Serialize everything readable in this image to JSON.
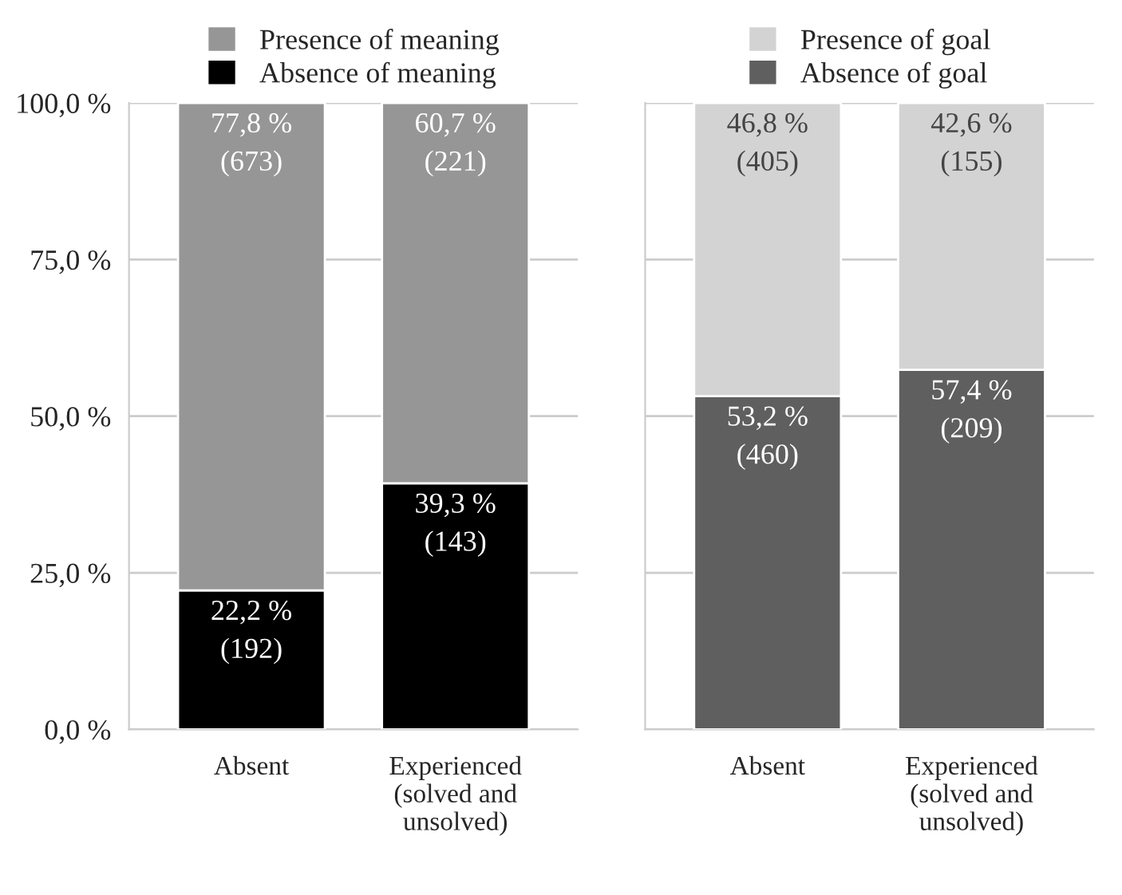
{
  "chart_data": [
    {
      "type": "bar",
      "stacked": true,
      "categories": [
        "Absent",
        "Experienced\n(solved and\nunsolved)"
      ],
      "series": [
        {
          "name": "Absence of meaning",
          "color": "#000000",
          "values": [
            22.2,
            39.3
          ],
          "value_labels": [
            "22,2 %\n(192)",
            "39,3 %\n(143)"
          ]
        },
        {
          "name": "Presence of meaning",
          "color": "#969696",
          "values": [
            77.8,
            60.7
          ],
          "value_labels": [
            "77,8 %\n(673)",
            "60,7 %\n(221)"
          ]
        }
      ],
      "ylim": [
        0,
        100
      ],
      "yticks": [
        {
          "value": 0,
          "label": "0,0 %"
        },
        {
          "value": 25,
          "label": "25,0 %"
        },
        {
          "value": 50,
          "label": "50,0 %"
        },
        {
          "value": 75,
          "label": "75,0 %"
        },
        {
          "value": 100,
          "label": "100,0 %"
        }
      ],
      "grid": "y",
      "legend": "top"
    },
    {
      "type": "bar",
      "stacked": true,
      "categories": [
        "Absent",
        "Experienced\n(solved and\nunsolved)"
      ],
      "series": [
        {
          "name": "Absence of goal",
          "color": "#5f5f5f",
          "values": [
            53.2,
            57.4
          ],
          "value_labels": [
            "53,2 %\n(460)",
            "57,4 %\n(209)"
          ]
        },
        {
          "name": "Presence of goal",
          "color": "#d3d3d3",
          "values": [
            46.8,
            42.6
          ],
          "value_labels": [
            "46,8 %\n(405)",
            "42,6 %\n(155)"
          ]
        }
      ],
      "ylim": [
        0,
        100
      ],
      "yticks": [
        {
          "value": 0,
          "label": null
        },
        {
          "value": 25,
          "label": null
        },
        {
          "value": 50,
          "label": null
        },
        {
          "value": 75,
          "label": null
        },
        {
          "value": 100,
          "label": null
        }
      ],
      "grid": "y",
      "legend": "top",
      "tick_labels": "x"
    }
  ]
}
